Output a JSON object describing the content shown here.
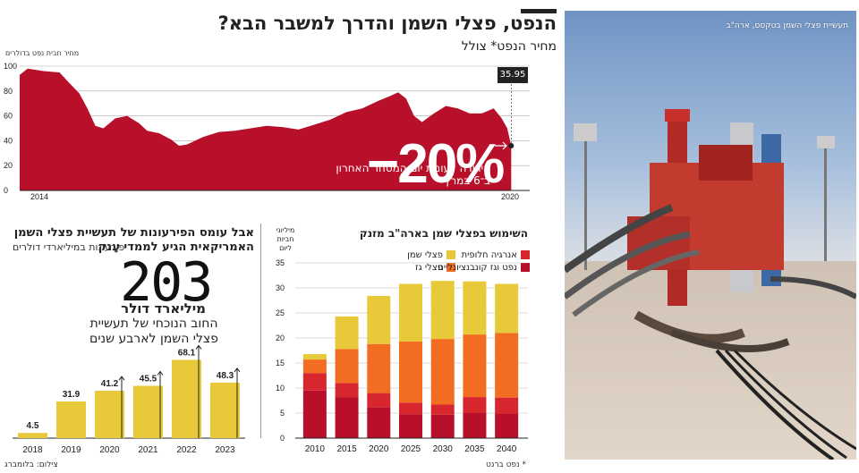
{
  "header": {
    "title": "הנפט, פצלי השמן והדרך למשבר הבא?",
    "subtitle": "מחיר הנפט* צולל"
  },
  "oil_chart": {
    "unit_label": "מחיר חבית נפט בדולרים",
    "last_price": "35.95",
    "change_pct": "−20%",
    "change_note": "הירידה לעומת יום המסחר האחרון ב־6 במרץ",
    "color": "#b8102a"
  },
  "debt": {
    "title": "אבל עומס הפירעונות של תעשיית פצלי השמן האמריקאית הגיע לממדי עָנק",
    "subtitle": "פירעונות במיליארדי דולרים",
    "big_number": "203",
    "unit": "מיליארד דולר",
    "description": "החוב הנוכחי של תעשיית פצלי השמן לארבע שנים",
    "bar_color": "#e8c93a"
  },
  "stack": {
    "title": "השימוש בפצלי שמן בארה\"ב מזנק",
    "unit_label": "מיליוני חביות ליום",
    "legend": [
      {
        "label": "פצלי שמן",
        "color": "#e8c93a"
      },
      {
        "label": "פצלי גז",
        "color": "#f26d21"
      },
      {
        "label": "אנרגיה חלופית",
        "color": "#d7262e"
      },
      {
        "label": "נפט וגז קונבנציונליים",
        "color": "#b8102a"
      }
    ]
  },
  "footer": {
    "note": "* נפט ברנט",
    "credit": "צילום: בלומברג"
  },
  "photo": {
    "caption": "תעשיית פצלי השמן בטקסס, ארה\"ב"
  },
  "chart_data": [
    {
      "type": "area",
      "title": "מחיר הנפט* צולל",
      "ylabel": "מחיר חבית נפט בדולרים",
      "x_ticks": [
        "2014",
        "2020"
      ],
      "y_ticks": [
        0,
        20,
        40,
        60,
        80,
        100
      ],
      "ylim": [
        0,
        100
      ],
      "xlim": [
        2014.0,
        2020.2
      ],
      "series": [
        {
          "x": [
            2014.0,
            2014.1,
            2014.3,
            2014.5,
            2014.6,
            2014.75,
            2014.85,
            2014.95,
            2015.05,
            2015.2,
            2015.35,
            2015.5,
            2015.6,
            2015.75,
            2015.9,
            2016.0,
            2016.1,
            2016.3,
            2016.5,
            2016.7,
            2016.9,
            2017.1,
            2017.3,
            2017.5,
            2017.7,
            2017.9,
            2018.1,
            2018.3,
            2018.5,
            2018.65,
            2018.75,
            2018.85,
            2018.95,
            2019.05,
            2019.2,
            2019.35,
            2019.5,
            2019.65,
            2019.8,
            2019.95,
            2020.05,
            2020.12,
            2020.17
          ],
          "values": [
            93,
            98,
            96,
            95,
            88,
            78,
            66,
            52,
            50,
            58,
            60,
            54,
            48,
            46,
            41,
            36,
            37,
            43,
            47,
            48,
            50,
            52,
            51,
            49,
            53,
            57,
            63,
            66,
            72,
            76,
            79,
            74,
            60,
            55,
            62,
            68,
            66,
            62,
            62,
            66,
            58,
            50,
            35.95
          ]
        }
      ]
    },
    {
      "type": "bar",
      "title": "אבל עומס הפירעונות של תעשיית פצלי השמן האמריקאית הגיע לממדי עָנק",
      "ylabel": "פירעונות במיליארדי דולרים",
      "categories": [
        "2018",
        "2019",
        "2020",
        "2021",
        "2022",
        "2023"
      ],
      "values": [
        4.5,
        31.9,
        41.2,
        45.5,
        68.1,
        48.3
      ],
      "value_labels": [
        "4.5",
        "31.9",
        "41.2",
        "45.5",
        "68.1",
        "48.3"
      ]
    },
    {
      "type": "bar",
      "stacked": true,
      "title": "השימוש בפצלי שמן בארה\"ב מזנק",
      "ylabel": "מיליוני חביות ליום",
      "categories": [
        "2010",
        "2015",
        "2020",
        "2025",
        "2030",
        "2035",
        "2040"
      ],
      "y_ticks": [
        0,
        5,
        10,
        15,
        20,
        25,
        30,
        35
      ],
      "ylim": [
        0,
        35
      ],
      "series": [
        {
          "name": "נפט וגז קונבנציונליים",
          "values": [
            9.5,
            8.2,
            6.2,
            4.8,
            4.7,
            5.0,
            4.9
          ]
        },
        {
          "name": "אנרגיה חלופית",
          "values": [
            3.5,
            2.8,
            2.8,
            2.3,
            2.0,
            3.2,
            3.2
          ]
        },
        {
          "name": "פצלי גז",
          "values": [
            2.7,
            6.8,
            9.8,
            12.2,
            13.1,
            12.5,
            12.9
          ]
        },
        {
          "name": "פצלי שמן",
          "values": [
            1.1,
            6.5,
            9.6,
            11.5,
            11.6,
            10.6,
            9.8
          ]
        }
      ]
    }
  ]
}
